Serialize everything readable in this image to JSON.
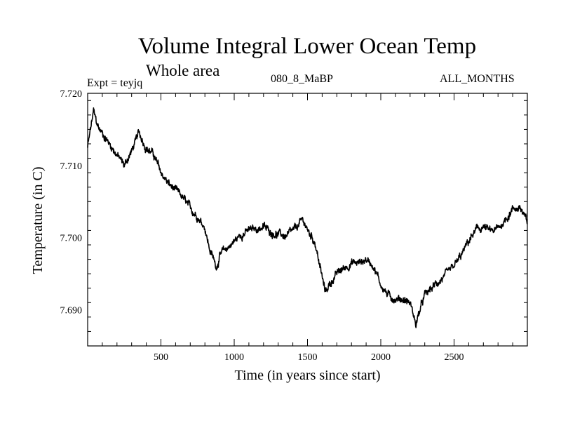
{
  "chart_data": {
    "type": "line",
    "title": "Volume Integral Lower Ocean Temp",
    "subtitle": "Whole area",
    "left_label": "Expt = teyjq",
    "center_label": "080_8_MaBP",
    "right_label": "ALL_MONTHS",
    "xlabel": "Time (in years since start)",
    "ylabel": "Temperature (in C)",
    "xlim": [
      0,
      3000
    ],
    "ylim": [
      7.685,
      7.72
    ],
    "x_ticks": [
      500,
      1000,
      1500,
      2000,
      2500
    ],
    "x_tick_labels": [
      "500",
      "1000",
      "1500",
      "2000",
      "2500"
    ],
    "y_ticks": [
      7.69,
      7.7,
      7.71,
      7.72
    ],
    "y_tick_labels": [
      "7.690",
      "7.700",
      "7.710",
      "7.720"
    ],
    "grid": false,
    "series": [
      {
        "name": "Volume Integral Lower Ocean Temp",
        "x": [
          0,
          20,
          40,
          60,
          80,
          100,
          150,
          200,
          250,
          300,
          350,
          400,
          450,
          500,
          550,
          600,
          650,
          700,
          750,
          800,
          830,
          860,
          880,
          900,
          950,
          1000,
          1050,
          1100,
          1150,
          1200,
          1250,
          1300,
          1350,
          1400,
          1450,
          1470,
          1500,
          1550,
          1600,
          1620,
          1650,
          1700,
          1750,
          1800,
          1850,
          1900,
          1950,
          2000,
          2050,
          2100,
          2150,
          2200,
          2240,
          2260,
          2300,
          2350,
          2400,
          2450,
          2500,
          2550,
          2600,
          2650,
          2700,
          2750,
          2800,
          2850,
          2900,
          2950,
          3000
        ],
        "values": [
          7.7125,
          7.715,
          7.7175,
          7.716,
          7.715,
          7.7145,
          7.713,
          7.7115,
          7.71,
          7.712,
          7.7145,
          7.7125,
          7.7115,
          7.709,
          7.7075,
          7.7065,
          7.7055,
          7.704,
          7.703,
          7.7015,
          7.6985,
          7.697,
          7.696,
          7.6975,
          7.6985,
          7.6995,
          7.7005,
          7.701,
          7.7012,
          7.7015,
          7.7008,
          7.7005,
          7.7002,
          7.7008,
          7.702,
          7.7025,
          7.701,
          7.6995,
          7.6945,
          7.6925,
          7.6935,
          7.695,
          7.6958,
          7.6965,
          7.6965,
          7.697,
          7.6962,
          7.6935,
          7.692,
          7.6915,
          7.6915,
          7.691,
          7.688,
          7.6895,
          7.692,
          7.693,
          7.694,
          7.6948,
          7.696,
          7.6975,
          7.6995,
          7.701,
          7.7015,
          7.7008,
          7.7012,
          7.7025,
          7.704,
          7.7042,
          7.702
        ]
      }
    ]
  }
}
